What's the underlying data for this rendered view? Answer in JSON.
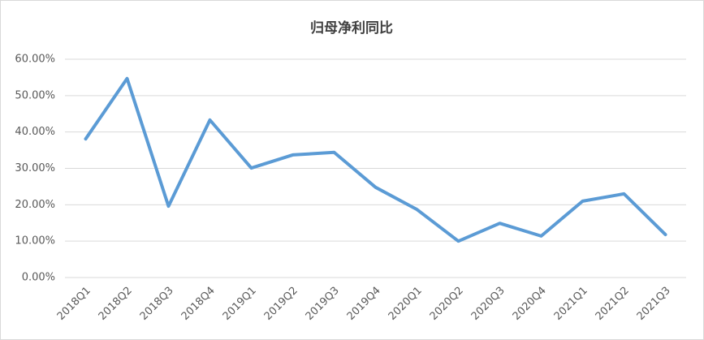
{
  "chart_data": {
    "type": "line",
    "title": "归母净利同比",
    "categories": [
      "2018Q1",
      "2018Q2",
      "2018Q3",
      "2018Q4",
      "2019Q1",
      "2019Q2",
      "2019Q3",
      "2019Q4",
      "2020Q1",
      "2020Q2",
      "2020Q3",
      "2020Q4",
      "2021Q1",
      "2021Q2",
      "2021Q3"
    ],
    "values": [
      38.1,
      54.7,
      19.6,
      43.3,
      30.1,
      33.7,
      34.4,
      24.8,
      18.7,
      10.0,
      14.9,
      11.4,
      21.0,
      23.0,
      11.8
    ],
    "color": "#5b9bd5",
    "ylim": [
      0,
      60
    ],
    "yticks": [
      {
        "value": 0,
        "label": "0.00%"
      },
      {
        "value": 10,
        "label": "10.00%"
      },
      {
        "value": 20,
        "label": "20.00%"
      },
      {
        "value": 30,
        "label": "30.00%"
      },
      {
        "value": 40,
        "label": "40.00%"
      },
      {
        "value": 50,
        "label": "50.00%"
      },
      {
        "value": 60,
        "label": "60.00%"
      }
    ],
    "grid": true
  }
}
